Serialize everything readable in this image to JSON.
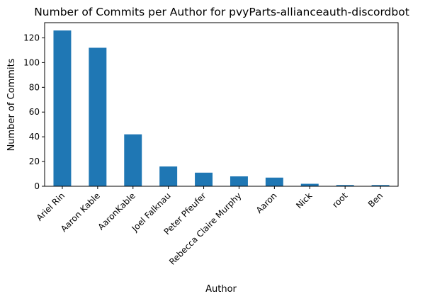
{
  "chart_data": {
    "type": "bar",
    "title": "Number of Commits per Author for pvyParts-allianceauth-discordbot",
    "xlabel": "Author",
    "ylabel": "Number of Commits",
    "categories": [
      "Ariel Rin",
      "Aaron Kable",
      "AaronKable",
      "Joel Falknau",
      "Peter Pfeufer",
      "Rebecca Claire Murphy",
      "Aaron",
      "Nick",
      "root",
      "Ben"
    ],
    "values": [
      126,
      112,
      42,
      16,
      11,
      8,
      7,
      2,
      1,
      1
    ],
    "ylim": [
      0,
      132.3
    ],
    "yticks": [
      0,
      20,
      40,
      60,
      80,
      100,
      120
    ],
    "bar_color": "#1f77b4",
    "grid": false,
    "legend": "none",
    "x_tick_rotation": 45
  }
}
